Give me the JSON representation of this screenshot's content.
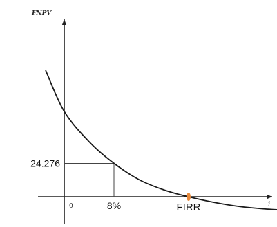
{
  "chart_data": {
    "type": "line",
    "ylabel": "FNPV",
    "xlabel": "i",
    "origin_label": "0",
    "x_tick_label": "8%",
    "y_tick_label": "24.276",
    "irr_label": "FIRR",
    "irr_color": "#e8893b",
    "line_color": "#1a1a1a",
    "grid": false,
    "marked_point": {
      "x": 8,
      "y": 24.276
    },
    "xlim": [
      -4,
      45
    ],
    "ylim": [
      -10,
      100
    ],
    "series": [
      {
        "x": [
          -3,
          0,
          4,
          8,
          12,
          16,
          20,
          24,
          28,
          32,
          36,
          40
        ],
        "y": [
          92,
          62,
          40,
          24.276,
          12.5,
          5,
          0,
          -4,
          -7,
          -8.8,
          -9.8,
          -10.3
        ]
      }
    ]
  }
}
